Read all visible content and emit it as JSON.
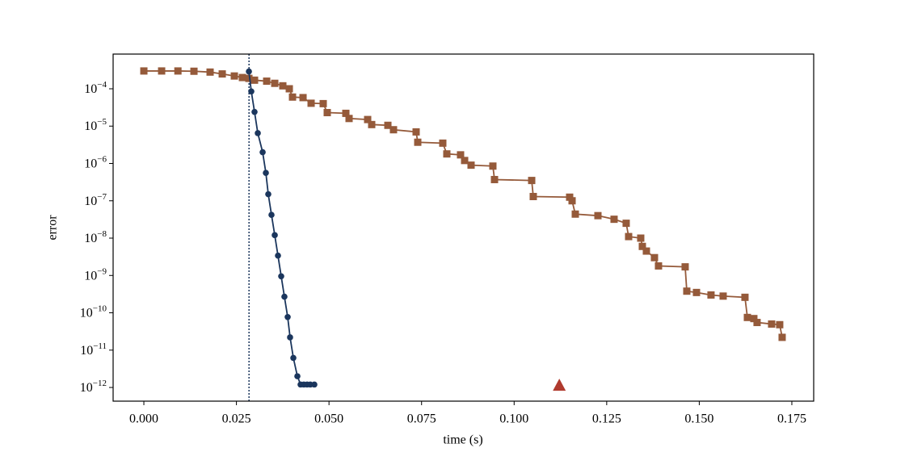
{
  "chart_data": {
    "type": "line",
    "xlabel": "time (s)",
    "ylabel": "error",
    "log_y": true,
    "xlim": [
      -0.0083,
      0.1809
    ],
    "ylim": [
      0.00085,
      4.3e-13
    ],
    "xticks": [
      {
        "value": 0,
        "label": "0.000"
      },
      {
        "value": 0.025,
        "label": "0.025"
      },
      {
        "value": 0.05,
        "label": "0.050"
      },
      {
        "value": 0.075,
        "label": "0.075"
      },
      {
        "value": 0.1,
        "label": "0.100"
      },
      {
        "value": 0.125,
        "label": "0.125"
      },
      {
        "value": 0.15,
        "label": "0.150"
      },
      {
        "value": 0.175,
        "label": "0.175"
      }
    ],
    "yticks": [
      {
        "value": 0.0001,
        "label": "10",
        "exponent": "−4"
      },
      {
        "value": 1e-05,
        "label": "10",
        "exponent": "−5"
      },
      {
        "value": 1e-06,
        "label": "10",
        "exponent": "−6"
      },
      {
        "value": 1e-07,
        "label": "10",
        "exponent": "−7"
      },
      {
        "value": 1e-08,
        "label": "10",
        "exponent": "−8"
      },
      {
        "value": 1e-09,
        "label": "10",
        "exponent": "−9"
      },
      {
        "value": 1e-10,
        "label": "10",
        "exponent": "−10"
      },
      {
        "value": 1e-11,
        "label": "10",
        "exponent": "−11"
      },
      {
        "value": 1e-12,
        "label": "10",
        "exponent": "−12"
      }
    ],
    "vline": {
      "x": 0.0284,
      "color": "#1b365d"
    },
    "series": [
      {
        "color": "#955a3a",
        "marker": "square",
        "x": [
          0,
          0.0048,
          0.0092,
          0.01353,
          0.01789,
          0.02117,
          0.02444,
          0.02662,
          0.02837,
          0.02989,
          0.03317,
          0.03535,
          0.03753,
          0.03928,
          0.04015,
          0.04299,
          0.04517,
          0.04844,
          0.04953,
          0.05455,
          0.05542,
          0.06044,
          0.06153,
          0.0659,
          0.06742,
          0.07353,
          0.07397,
          0.08073,
          0.08182,
          0.08553,
          0.08663,
          0.08837,
          0.09426,
          0.0947,
          0.10474,
          0.10517,
          0.11499,
          0.11565,
          0.11652,
          0.12263,
          0.12699,
          0.13026,
          0.13092,
          0.13419,
          0.13463,
          0.13572,
          0.1379,
          0.13899,
          0.14619,
          0.14663,
          0.14925,
          0.15317,
          0.15645,
          0.16234,
          0.163,
          0.16474,
          0.16561,
          0.16954,
          0.17172,
          0.17238
        ],
        "values": [
          0.0003,
          0.0003,
          0.0003,
          0.000295,
          0.00028,
          0.00025,
          0.00022,
          0.0002,
          0.00019,
          0.00017,
          0.00016,
          0.00014,
          0.00012,
          0.0001,
          6e-05,
          5.8e-05,
          4.1e-05,
          4e-05,
          2.3e-05,
          2.2e-05,
          1.6e-05,
          1.5e-05,
          1.1e-05,
          1.05e-05,
          8e-06,
          7e-06,
          3.7e-06,
          3.5e-06,
          1.8e-06,
          1.7e-06,
          1.2e-06,
          9e-07,
          8.5e-07,
          3.7e-07,
          3.5e-07,
          1.3e-07,
          1.25e-07,
          1e-07,
          4.4e-08,
          4e-08,
          3.2e-08,
          2.5e-08,
          1.1e-08,
          1e-08,
          6e-09,
          4.5e-09,
          3e-09,
          1.8e-09,
          1.7e-09,
          3.8e-10,
          3.5e-10,
          3e-10,
          2.8e-10,
          2.6e-10,
          7.5e-11,
          7e-11,
          5.5e-11,
          5e-11,
          4.8e-11,
          2.2e-11
        ]
      },
      {
        "color": "#1b365d",
        "marker": "circle",
        "x": [
          0.02837,
          0.02902,
          0.02989,
          0.03077,
          0.03208,
          0.03295,
          0.0336,
          0.03447,
          0.03535,
          0.03622,
          0.03709,
          0.03796,
          0.03884,
          0.03949,
          0.04037,
          0.04146,
          0.04233,
          0.0432,
          0.04408,
          0.04495,
          0.04604
        ],
        "values": [
          0.00029,
          8.5e-05,
          2.4e-05,
          6.5e-06,
          2e-06,
          5.6e-07,
          1.5e-07,
          4.2e-08,
          1.2e-08,
          3.4e-09,
          9.5e-10,
          2.7e-10,
          7.7e-11,
          2.2e-11,
          6.2e-12,
          2e-12,
          1.2e-12,
          1.2e-12,
          1.2e-12,
          1.2e-12,
          1.2e-12
        ]
      }
    ],
    "points": [
      {
        "x": 0.1122,
        "y": 1.1e-12,
        "color": "#b03a2e",
        "marker": "triangle"
      }
    ]
  }
}
